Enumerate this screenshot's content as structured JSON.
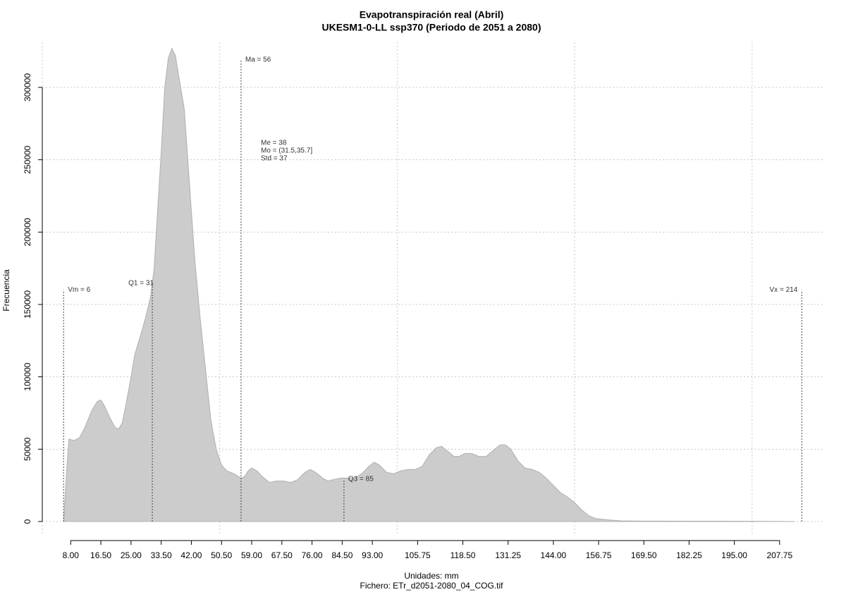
{
  "chart_data": {
    "type": "area",
    "title": "Evapotranspiración real (Abril)",
    "subtitle": "UKESM1-0-LL ssp370 (Periodo de 2051 a 2080)",
    "y_label": "Frecuencia",
    "x_label": "Unidades: mm",
    "caption": "Fichero: ETr_d2051-2080_04_COG.tif",
    "color": "#cccccc",
    "grid": true,
    "xlim": [
      0,
      220.5
    ],
    "ylim": [
      -9740,
      331170
    ],
    "xticks": [
      {
        "value": 8,
        "label": "8.00"
      },
      {
        "value": 16.5,
        "label": "16.50"
      },
      {
        "value": 25,
        "label": "25.00"
      },
      {
        "value": 33.5,
        "label": "33.50"
      },
      {
        "value": 42,
        "label": "42.00"
      },
      {
        "value": 50.5,
        "label": "50.50"
      },
      {
        "value": 59,
        "label": "59.00"
      },
      {
        "value": 67.5,
        "label": "67.50"
      },
      {
        "value": 76,
        "label": "76.00"
      },
      {
        "value": 84.5,
        "label": "84.50"
      },
      {
        "value": 93,
        "label": "93.00"
      },
      {
        "value": 105.75,
        "label": "105.75"
      },
      {
        "value": 118.5,
        "label": "118.50"
      },
      {
        "value": 131.25,
        "label": "131.25"
      },
      {
        "value": 144,
        "label": "144.00"
      },
      {
        "value": 156.75,
        "label": "156.75"
      },
      {
        "value": 169.5,
        "label": "169.50"
      },
      {
        "value": 182.25,
        "label": "182.25"
      },
      {
        "value": 195,
        "label": "195.00"
      },
      {
        "value": 207.75,
        "label": "207.75"
      }
    ],
    "xgrid": [
      0,
      50,
      100,
      150,
      200
    ],
    "yticks": [
      0,
      50000,
      100000,
      150000,
      200000,
      250000,
      300000
    ],
    "x": [
      6,
      6.5,
      7,
      7.5,
      9,
      10.5,
      12,
      14,
      15.5,
      16.5,
      17.5,
      19,
      20.5,
      21.5,
      22.5,
      23.5,
      25,
      26,
      27.5,
      29,
      30.5,
      31.5,
      32.5,
      33.5,
      34.5,
      35.5,
      36.5,
      37.5,
      38.5,
      40,
      41,
      42,
      43,
      44.5,
      46,
      47.5,
      49,
      50.5,
      52,
      54,
      56,
      57,
      58,
      59,
      60.5,
      62,
      64,
      66,
      68,
      70,
      72,
      74,
      75.5,
      77,
      79,
      80.5,
      82,
      84,
      86,
      88,
      90,
      92,
      93.5,
      95,
      97,
      99,
      101,
      103,
      105,
      107,
      109,
      111,
      112.5,
      114,
      116,
      117.5,
      119,
      121,
      123,
      125,
      127,
      129,
      130.5,
      132,
      134,
      136,
      138,
      140,
      142,
      144,
      146,
      148,
      150,
      152,
      154,
      156,
      158,
      160,
      163,
      170,
      200,
      212
    ],
    "values": [
      0,
      20000,
      40000,
      57000,
      56000,
      58000,
      65000,
      77000,
      83000,
      84000,
      80000,
      72000,
      65000,
      64000,
      68000,
      80000,
      100000,
      115000,
      127000,
      140000,
      155000,
      175000,
      215000,
      255000,
      300000,
      320000,
      327000,
      322000,
      307000,
      285000,
      250000,
      215000,
      180000,
      140000,
      105000,
      70000,
      50000,
      39000,
      35000,
      33000,
      30000,
      31000,
      35000,
      37000,
      35000,
      31000,
      27000,
      28000,
      28000,
      27000,
      29000,
      34000,
      36000,
      34000,
      30000,
      28000,
      29000,
      30000,
      30000,
      30000,
      33000,
      38000,
      41000,
      39000,
      34000,
      33000,
      35000,
      36000,
      36000,
      38000,
      46000,
      51000,
      52000,
      49000,
      45000,
      45000,
      47000,
      47000,
      45000,
      45000,
      49000,
      53000,
      53000,
      50000,
      42000,
      37000,
      36000,
      34000,
      30000,
      25000,
      20000,
      17000,
      13000,
      8000,
      4000,
      2000,
      1500,
      1000,
      500,
      300,
      200,
      0
    ],
    "annotations": [
      {
        "label": "Vm = 6",
        "x": 6,
        "y": 160000
      },
      {
        "label": "Q1 = 31",
        "x": 31,
        "y": 165600
      },
      {
        "label": "Ma = 56",
        "x": 56,
        "y": 319000
      },
      {
        "label": "Q3 = 85",
        "x": 85,
        "y": 29200
      },
      {
        "label": "Vx = 214",
        "x": 214,
        "y": 160000
      }
    ],
    "stats": [
      "Me = 38",
      "Mo = (31.5,35.7]",
      "Std = 37"
    ]
  }
}
